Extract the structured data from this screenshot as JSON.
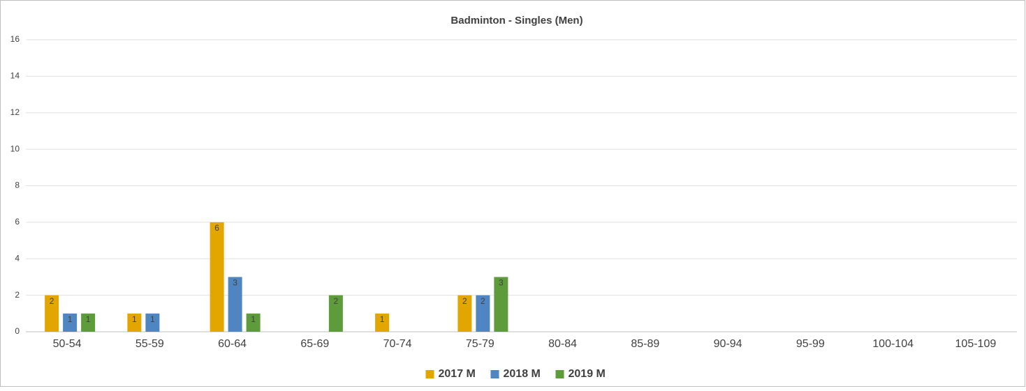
{
  "chart_data": {
    "type": "bar",
    "title": "Badminton - Singles (Men)",
    "categories": [
      "50-54",
      "55-59",
      "60-64",
      "65-69",
      "70-74",
      "75-79",
      "80-84",
      "85-89",
      "90-94",
      "95-99",
      "100-104",
      "105-109"
    ],
    "series": [
      {
        "name": "2017 M",
        "color": "#e3a600",
        "values": [
          2,
          1,
          6,
          null,
          1,
          2,
          null,
          null,
          null,
          null,
          null,
          null
        ]
      },
      {
        "name": "2018 M",
        "color": "#4f86c1",
        "values": [
          1,
          1,
          3,
          null,
          null,
          2,
          null,
          null,
          null,
          null,
          null,
          null
        ]
      },
      {
        "name": "2019 M",
        "color": "#5e9b3b",
        "values": [
          1,
          null,
          1,
          2,
          null,
          3,
          null,
          null,
          null,
          null,
          null,
          null
        ]
      }
    ],
    "ylim": [
      0,
      16
    ],
    "yticks": [
      0,
      2,
      4,
      6,
      8,
      10,
      12,
      14,
      16
    ],
    "grid": true,
    "legend": "bottom"
  }
}
